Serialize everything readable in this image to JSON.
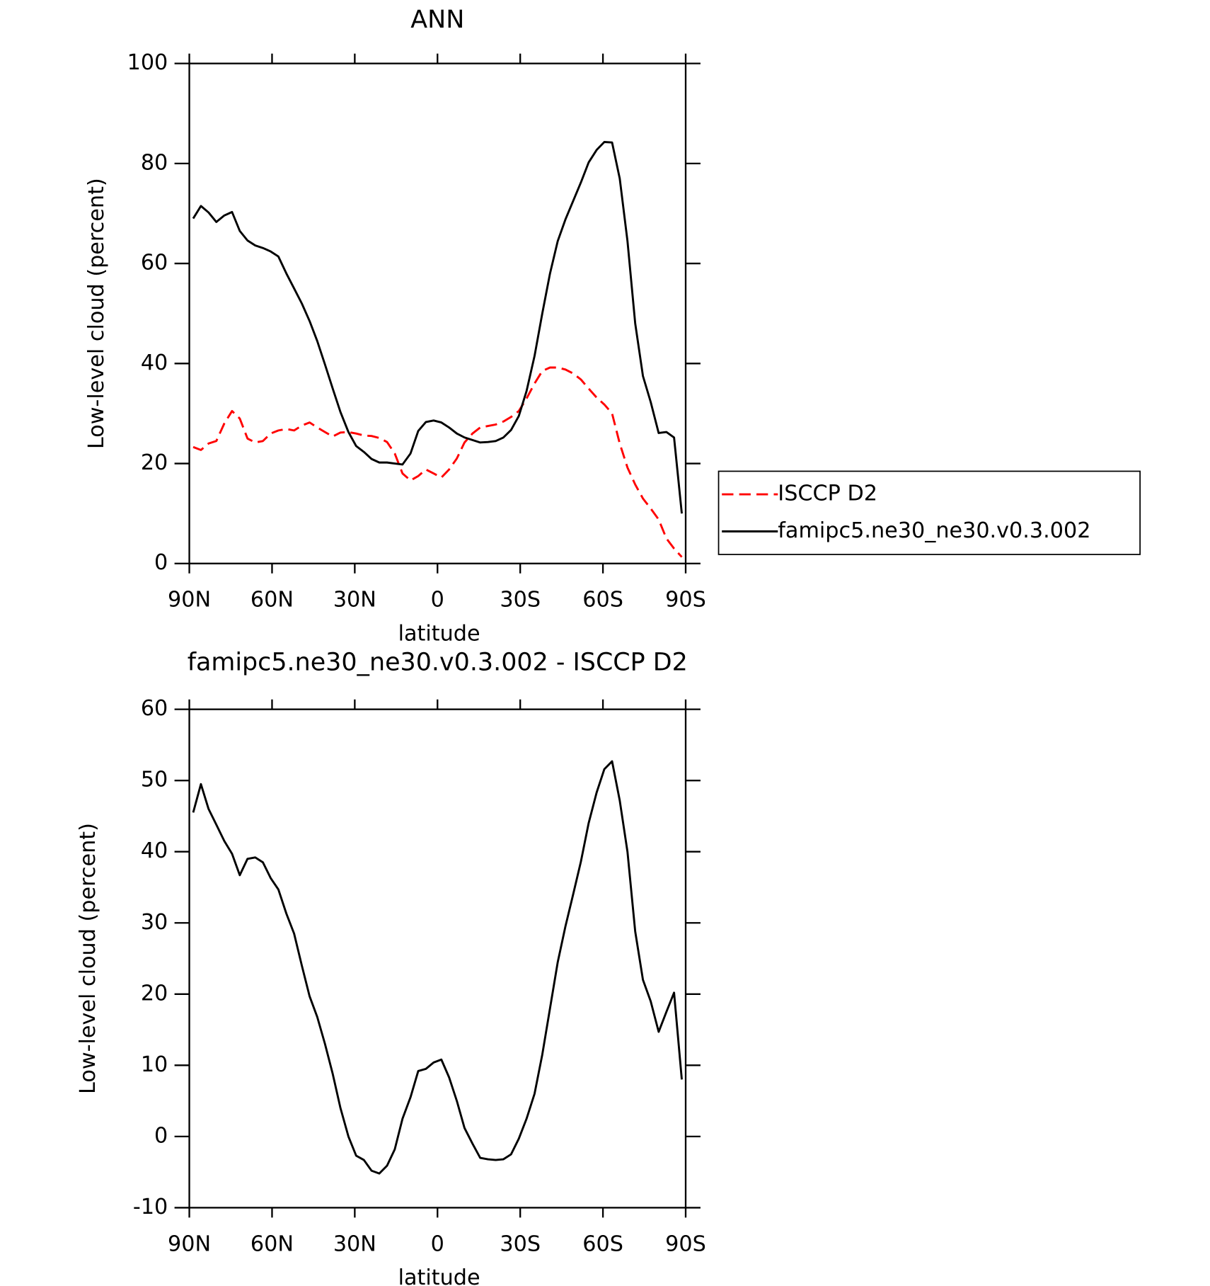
{
  "chart_data": [
    {
      "type": "line",
      "title": "ANN",
      "xlabel": "latitude",
      "ylabel": "Low-level cloud (percent)",
      "x": [
        88.6,
        85.8,
        83.0,
        80.2,
        77.3,
        74.5,
        71.7,
        68.9,
        66.1,
        63.3,
        60.5,
        57.7,
        54.8,
        52.0,
        49.2,
        46.4,
        43.6,
        40.8,
        38.0,
        35.2,
        32.3,
        29.5,
        26.7,
        23.9,
        21.1,
        18.3,
        15.5,
        12.7,
        9.8,
        7.0,
        4.2,
        1.4,
        -1.4,
        -4.2,
        -7.0,
        -9.8,
        -12.7,
        -15.5,
        -18.3,
        -21.1,
        -23.9,
        -26.7,
        -29.5,
        -32.3,
        -35.2,
        -38.0,
        -40.8,
        -43.6,
        -46.4,
        -49.2,
        -52.0,
        -54.8,
        -57.7,
        -60.5,
        -63.3,
        -66.1,
        -68.9,
        -71.7,
        -74.5,
        -77.3,
        -80.2,
        -83.0,
        -85.8,
        -88.6
      ],
      "series": [
        {
          "name": "ISCCP D2",
          "color": "#ff0000",
          "dash": true,
          "values": [
            23.3,
            22.7,
            24,
            24.5,
            28,
            30.5,
            29,
            25,
            24.2,
            24.5,
            26,
            26.6,
            26.9,
            26.6,
            27.6,
            28.2,
            27.2,
            26.3,
            25.4,
            26.2,
            26.3,
            26,
            25.6,
            25.5,
            25.1,
            24.3,
            22,
            18,
            16.6,
            17.5,
            18.8,
            18,
            17.2,
            18.8,
            21,
            24.2,
            26,
            27.2,
            27.5,
            27.8,
            28.4,
            29.3,
            30.5,
            33,
            36,
            38.5,
            39.2,
            39.2,
            38.8,
            38,
            36.8,
            35,
            33.2,
            31.8,
            30,
            24,
            19.2,
            15.8,
            13,
            11,
            8.8,
            5,
            3,
            1.3
          ]
        },
        {
          "name": "famipc5.ne30_ne30.v0.3.002",
          "color": "#000000",
          "dash": false,
          "values": [
            69,
            71.5,
            70.2,
            68.3,
            69.6,
            70.3,
            66.5,
            64.6,
            63.6,
            63.1,
            62.4,
            61.4,
            58,
            55,
            52,
            48.5,
            44.5,
            39.8,
            35,
            30.3,
            26.3,
            23.5,
            22.3,
            20.9,
            20.2,
            20.2,
            20,
            19.8,
            22,
            26.5,
            28.3,
            28.6,
            28.2,
            27.2,
            26,
            25.2,
            24.7,
            24.2,
            24.3,
            24.5,
            25.2,
            26.7,
            29.5,
            34.5,
            41.5,
            50,
            58,
            64.5,
            68.8,
            72.5,
            76.2,
            80.2,
            82.7,
            84.3,
            84.2,
            77,
            64.5,
            48,
            37.5,
            32.3,
            26.1,
            26.3,
            25.2,
            10
          ]
        }
      ],
      "xlim": [
        90,
        -90
      ],
      "xticks": [
        {
          "value": 90,
          "label": "90N"
        },
        {
          "value": 60,
          "label": "60N"
        },
        {
          "value": 30,
          "label": "30N"
        },
        0,
        {
          "value": -30,
          "label": "30S"
        },
        {
          "value": -60,
          "label": "60S"
        },
        {
          "value": -90,
          "label": "90S"
        }
      ],
      "ylim": [
        0,
        100
      ],
      "yticks": [
        0,
        20,
        40,
        60,
        80,
        100
      ],
      "legend": "right"
    },
    {
      "type": "line",
      "title": "famipc5.ne30_ne30.v0.3.002 - ISCCP D2",
      "xlabel": "latitude",
      "ylabel": "Low-level cloud (percent)",
      "x": [
        88.6,
        85.8,
        83.0,
        80.2,
        77.3,
        74.5,
        71.7,
        68.9,
        66.1,
        63.3,
        60.5,
        57.7,
        54.8,
        52.0,
        49.2,
        46.4,
        43.6,
        40.8,
        38.0,
        35.2,
        32.3,
        29.5,
        26.7,
        23.9,
        21.1,
        18.3,
        15.5,
        12.7,
        9.8,
        7.0,
        4.2,
        1.4,
        -1.4,
        -4.2,
        -7.0,
        -9.8,
        -12.7,
        -15.5,
        -18.3,
        -21.1,
        -23.9,
        -26.7,
        -29.5,
        -32.3,
        -35.2,
        -38.0,
        -40.8,
        -43.6,
        -46.4,
        -49.2,
        -52.0,
        -54.8,
        -57.7,
        -60.5,
        -63.3,
        -66.1,
        -68.9,
        -71.7,
        -74.5,
        -77.3,
        -80.2,
        -83.0,
        -85.8,
        -88.6
      ],
      "series": [
        {
          "color": "#000000",
          "dash": false,
          "values": [
            45.5,
            49.5,
            46,
            43.8,
            41.5,
            39.7,
            36.7,
            39,
            39.2,
            38.5,
            36.3,
            34.7,
            31.3,
            28.5,
            24,
            19.7,
            16.8,
            13,
            8.8,
            4,
            0,
            -2.7,
            -3.3,
            -4.8,
            -5.2,
            -4.1,
            -1.8,
            2.5,
            5.5,
            9.2,
            9.5,
            10.4,
            10.8,
            8.3,
            5,
            1.2,
            -1,
            -3,
            -3.2,
            -3.3,
            -3.2,
            -2.5,
            -0.3,
            2.5,
            6,
            11.5,
            18,
            24.5,
            29.5,
            34,
            38.6,
            44,
            48.3,
            51.6,
            52.7,
            47.2,
            40,
            28.8,
            22,
            19,
            14.7,
            17.5,
            20.2,
            8
          ]
        }
      ],
      "xlim": [
        90,
        -90
      ],
      "xticks": [
        {
          "value": 90,
          "label": "90N"
        },
        {
          "value": 60,
          "label": "60N"
        },
        {
          "value": 30,
          "label": "30N"
        },
        0,
        {
          "value": -30,
          "label": "30S"
        },
        {
          "value": -60,
          "label": "60S"
        },
        {
          "value": -90,
          "label": "90S"
        }
      ],
      "ylim": [
        -10,
        60
      ],
      "yticks": [
        -10,
        0,
        10,
        20,
        30,
        40,
        50,
        60
      ]
    }
  ]
}
